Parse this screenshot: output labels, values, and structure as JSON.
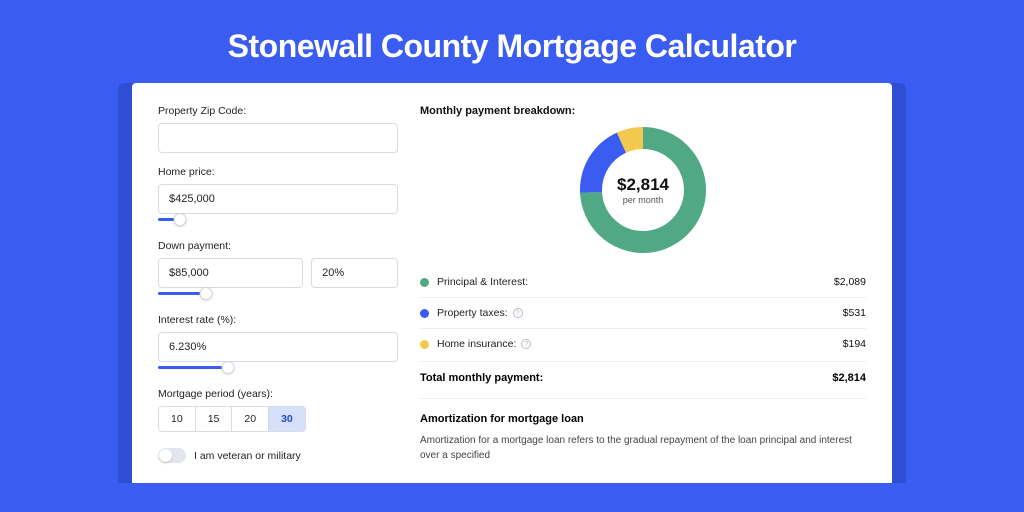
{
  "hero": {
    "title": "Stonewall County Mortgage Calculator"
  },
  "form": {
    "zip": {
      "label": "Property Zip Code:",
      "value": ""
    },
    "home_price": {
      "label": "Home price:",
      "value": "$425,000",
      "slider_pct": 9
    },
    "down_payment": {
      "label": "Down payment:",
      "amount": "$85,000",
      "pct": "20%",
      "slider_pct": 20
    },
    "interest": {
      "label": "Interest rate (%):",
      "value": "6.230%",
      "slider_pct": 29
    },
    "period": {
      "label": "Mortgage period (years):",
      "options": [
        "10",
        "15",
        "20",
        "30"
      ],
      "active_index": 3
    },
    "veteran": {
      "label": "I am veteran or military",
      "on": false
    }
  },
  "breakdown": {
    "title": "Monthly payment breakdown:",
    "donut": {
      "amount": "$2,814",
      "sub": "per month",
      "slices": [
        {
          "key": "principal",
          "pct": 74.2,
          "color": "#51a885"
        },
        {
          "key": "taxes",
          "pct": 18.9,
          "color": "#3a5cf0"
        },
        {
          "key": "insurance",
          "pct": 6.9,
          "color": "#f2c94c"
        }
      ],
      "stroke_width": 22,
      "radius": 52,
      "bg": "#ffffff"
    },
    "items": [
      {
        "label": "Principal & Interest:",
        "value": "$2,089",
        "color": "#51a885",
        "info": false
      },
      {
        "label": "Property taxes:",
        "value": "$531",
        "color": "#3a5cf0",
        "info": true
      },
      {
        "label": "Home insurance:",
        "value": "$194",
        "color": "#f2c94c",
        "info": true
      }
    ],
    "total": {
      "label": "Total monthly payment:",
      "value": "$2,814"
    }
  },
  "amort": {
    "title": "Amortization for mortgage loan",
    "text": "Amortization for a mortgage loan refers to the gradual repayment of the loan principal and interest over a specified"
  },
  "colors": {
    "page_bg": "#3a5cf0",
    "card_shadow": "#2f4ed4",
    "border": "#d8dbe3",
    "active_bg": "#d7e0fb"
  }
}
